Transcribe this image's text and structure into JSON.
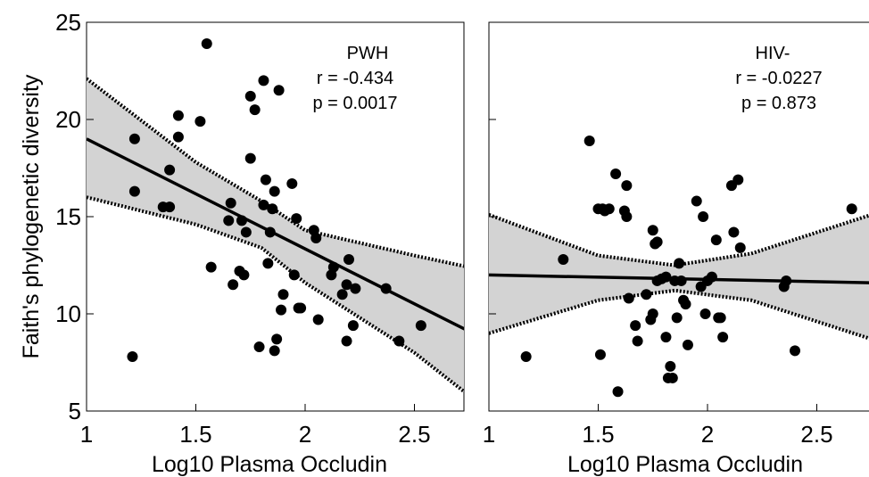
{
  "chart_data": [
    {
      "type": "scatter",
      "title": "",
      "xlabel": "Log10 Plasma Occludin",
      "ylabel": "Faith's phylogenetic diversity",
      "xlim": [
        1,
        2.75
      ],
      "ylim": [
        5,
        25
      ],
      "x_ticks": [
        "1",
        "1.5",
        "2",
        "2.5"
      ],
      "y_ticks": [
        "5",
        "10",
        "15",
        "20",
        "25"
      ],
      "grid": false,
      "annotation": [
        "PWH",
        "r = -0.434",
        "p = 0.0017"
      ],
      "regression_line": {
        "x": [
          1,
          2.75
        ],
        "y": [
          19.0,
          9.1
        ]
      },
      "confidence_band": {
        "x": [
          1,
          1.5,
          1.8,
          2.0,
          2.5,
          2.75
        ],
        "upper": [
          22.1,
          17.8,
          15.8,
          14.3,
          13.0,
          12.4
        ],
        "lower": [
          16.0,
          14.6,
          13.4,
          11.6,
          8.0,
          5.8
        ]
      },
      "series": [
        {
          "x": [
            1.21,
            1.22,
            1.22,
            1.35,
            1.38,
            1.38,
            1.42,
            1.42,
            1.52,
            1.55,
            1.57,
            1.65,
            1.66,
            1.67,
            1.7,
            1.71,
            1.72,
            1.73,
            1.75,
            1.75,
            1.77,
            1.79,
            1.81,
            1.81,
            1.82,
            1.83,
            1.84,
            1.85,
            1.86,
            1.86,
            1.87,
            1.88,
            1.89,
            1.9,
            1.94,
            1.95,
            1.96,
            1.97,
            1.98,
            2.04,
            2.05,
            2.06,
            2.12,
            2.13,
            2.17,
            2.19,
            2.19,
            2.2,
            2.22,
            2.23,
            2.37,
            2.43,
            2.53
          ],
          "y": [
            7.8,
            19.0,
            16.3,
            15.5,
            17.4,
            15.5,
            20.2,
            19.1,
            19.9,
            23.9,
            12.4,
            14.8,
            15.7,
            11.5,
            12.2,
            14.8,
            12.0,
            14.2,
            18.0,
            21.2,
            20.5,
            8.3,
            22.0,
            15.6,
            16.9,
            12.6,
            14.2,
            15.4,
            16.3,
            8.1,
            8.7,
            21.5,
            10.2,
            11.0,
            16.7,
            12.0,
            14.9,
            10.3,
            10.3,
            14.3,
            13.9,
            9.7,
            12.0,
            12.4,
            11.0,
            11.5,
            8.6,
            12.8,
            9.4,
            11.3,
            11.3,
            8.6,
            9.4
          ]
        }
      ]
    },
    {
      "type": "scatter",
      "title": "",
      "xlabel": "Log10 Plasma Occludin",
      "ylabel": "",
      "xlim": [
        1,
        2.75
      ],
      "ylim": [
        5,
        25
      ],
      "x_ticks": [
        "1",
        "1.5",
        "2",
        "2.5"
      ],
      "grid": false,
      "annotation": [
        "HIV-",
        "r = -0.0227",
        "p = 0.873"
      ],
      "regression_line": {
        "x": [
          1,
          2.75
        ],
        "y": [
          12.0,
          11.6
        ]
      },
      "confidence_band": {
        "x": [
          1,
          1.5,
          1.85,
          2.2,
          2.75
        ],
        "upper": [
          15.1,
          13.0,
          12.5,
          13.1,
          15.1
        ],
        "lower": [
          9.0,
          10.7,
          11.2,
          10.7,
          8.7
        ]
      },
      "series": [
        {
          "x": [
            1.17,
            1.34,
            1.46,
            1.5,
            1.51,
            1.52,
            1.53,
            1.55,
            1.58,
            1.59,
            1.62,
            1.63,
            1.63,
            1.64,
            1.67,
            1.68,
            1.72,
            1.74,
            1.75,
            1.75,
            1.76,
            1.77,
            1.77,
            1.79,
            1.81,
            1.81,
            1.82,
            1.83,
            1.84,
            1.85,
            1.86,
            1.87,
            1.88,
            1.89,
            1.9,
            1.91,
            1.95,
            1.97,
            1.98,
            1.99,
            2.0,
            2.02,
            2.04,
            2.05,
            2.06,
            2.07,
            2.11,
            2.12,
            2.14,
            2.15,
            2.35,
            2.36,
            2.4,
            2.66
          ],
          "y": [
            7.8,
            12.8,
            18.9,
            15.4,
            7.9,
            15.4,
            15.3,
            15.4,
            17.2,
            6.0,
            15.3,
            16.6,
            15.0,
            10.8,
            9.4,
            8.6,
            11.0,
            9.7,
            10.0,
            14.3,
            13.6,
            13.7,
            11.7,
            11.8,
            8.8,
            11.9,
            6.7,
            7.3,
            6.7,
            11.7,
            9.8,
            12.6,
            11.7,
            10.7,
            10.5,
            8.4,
            15.8,
            11.4,
            15.0,
            10.0,
            11.7,
            11.9,
            13.8,
            9.8,
            9.8,
            8.8,
            16.6,
            14.2,
            16.9,
            13.4,
            11.4,
            11.7,
            8.1,
            15.4
          ]
        }
      ]
    }
  ]
}
